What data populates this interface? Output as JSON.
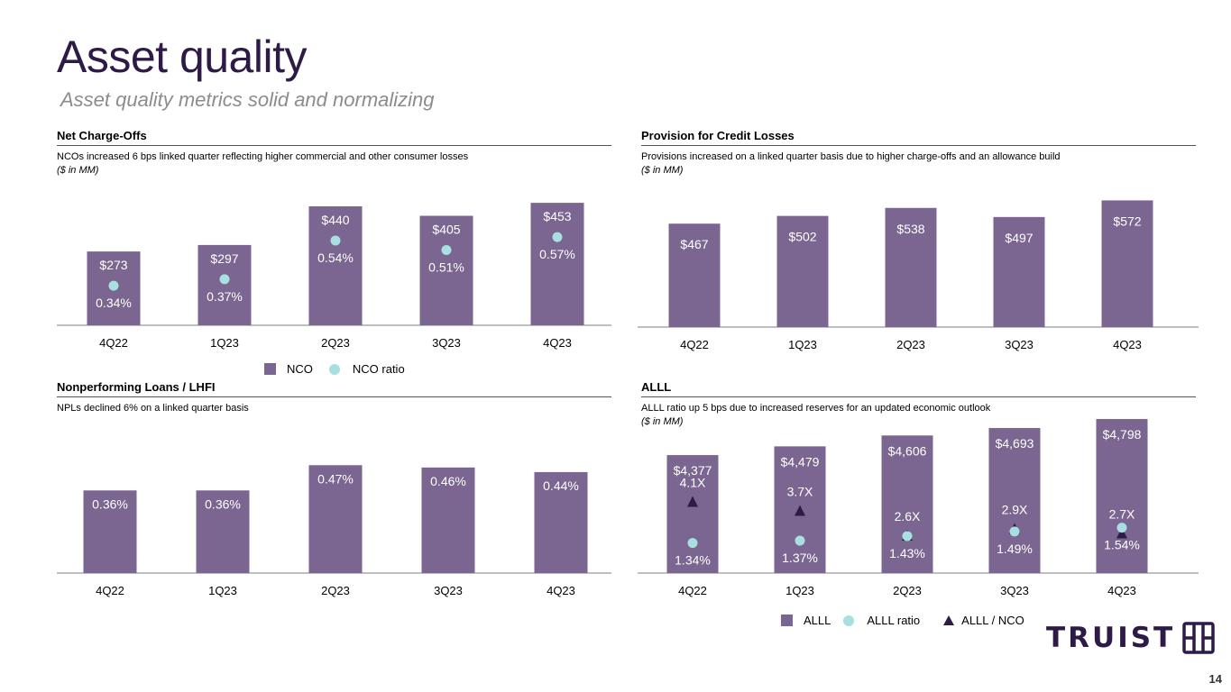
{
  "page": {
    "title": "Asset quality",
    "subtitle": "Asset quality metrics solid and normalizing",
    "page_number": "14",
    "logo_text": "TRUIST"
  },
  "colors": {
    "bar": "#7a6690",
    "ratio_dot": "#a8dfe0",
    "triangle": "#2e1a47",
    "title": "#2e1a47",
    "axis": "#bfbfbf"
  },
  "panels": {
    "nco": {
      "heading": "Net Charge-Offs",
      "description": "NCOs increased 6 bps linked quarter reflecting higher commercial and other consumer losses",
      "unit": "($ in MM)",
      "legend": {
        "bar": "NCO",
        "dot": "NCO ratio"
      }
    },
    "provision": {
      "heading": "Provision for Credit Losses",
      "description": "Provisions increased on a linked quarter basis due to higher charge-offs and an allowance build",
      "unit": "($ in MM)"
    },
    "npl": {
      "heading": "Nonperforming Loans / LHFI",
      "description": "NPLs declined 6% on a linked quarter basis"
    },
    "alll": {
      "heading": "ALLL",
      "description": "ALLL ratio up 5 bps due to increased reserves for an updated economic outlook",
      "unit": "($ in MM)",
      "legend": {
        "bar": "ALLL",
        "dot": "ALLL ratio",
        "triangle": "ALLL / NCO"
      }
    }
  },
  "chart_data": [
    {
      "id": "nco",
      "type": "bar",
      "title": "Net Charge-Offs",
      "categories": [
        "4Q22",
        "1Q23",
        "2Q23",
        "3Q23",
        "4Q23"
      ],
      "series": [
        {
          "name": "NCO",
          "values": [
            273,
            297,
            440,
            405,
            453
          ],
          "labels": [
            "$273",
            "$297",
            "$440",
            "$405",
            "$453"
          ]
        },
        {
          "name": "NCO ratio",
          "values": [
            0.34,
            0.37,
            0.54,
            0.51,
            0.57
          ],
          "labels": [
            "0.34%",
            "0.37%",
            "0.54%",
            "0.51%",
            "0.57%"
          ]
        }
      ],
      "ylabel": "$ in MM",
      "grid": false,
      "legend": "bottom"
    },
    {
      "id": "provision",
      "type": "bar",
      "title": "Provision for Credit Losses",
      "categories": [
        "4Q22",
        "1Q23",
        "2Q23",
        "3Q23",
        "4Q23"
      ],
      "series": [
        {
          "name": "Provision",
          "values": [
            467,
            502,
            538,
            497,
            572
          ],
          "labels": [
            "$467",
            "$502",
            "$538",
            "$497",
            "$572"
          ]
        }
      ],
      "ylabel": "$ in MM",
      "grid": false
    },
    {
      "id": "npl",
      "type": "bar",
      "title": "Nonperforming Loans / LHFI",
      "categories": [
        "4Q22",
        "1Q23",
        "2Q23",
        "3Q23",
        "4Q23"
      ],
      "series": [
        {
          "name": "NPL / LHFI",
          "values": [
            0.36,
            0.36,
            0.47,
            0.46,
            0.44
          ],
          "labels": [
            "0.36%",
            "0.36%",
            "0.47%",
            "0.46%",
            "0.44%"
          ]
        }
      ],
      "grid": false
    },
    {
      "id": "alll",
      "type": "bar",
      "title": "ALLL",
      "categories": [
        "4Q22",
        "1Q23",
        "2Q23",
        "3Q23",
        "4Q23"
      ],
      "series": [
        {
          "name": "ALLL",
          "values": [
            4377,
            4479,
            4606,
            4693,
            4798
          ],
          "labels": [
            "$4,377",
            "$4,479",
            "$4,606",
            "$4,693",
            "$4,798"
          ]
        },
        {
          "name": "ALLL ratio",
          "values": [
            1.34,
            1.37,
            1.43,
            1.49,
            1.54
          ],
          "labels": [
            "1.34%",
            "1.37%",
            "1.43%",
            "1.49%",
            "1.54%"
          ]
        },
        {
          "name": "ALLL / NCO",
          "values": [
            4.1,
            3.7,
            2.6,
            2.9,
            2.7
          ],
          "labels": [
            "4.1X",
            "3.7X",
            "2.6X",
            "2.9X",
            "2.7X"
          ]
        }
      ],
      "ylabel": "$ in MM",
      "grid": false,
      "legend": "bottom"
    }
  ]
}
